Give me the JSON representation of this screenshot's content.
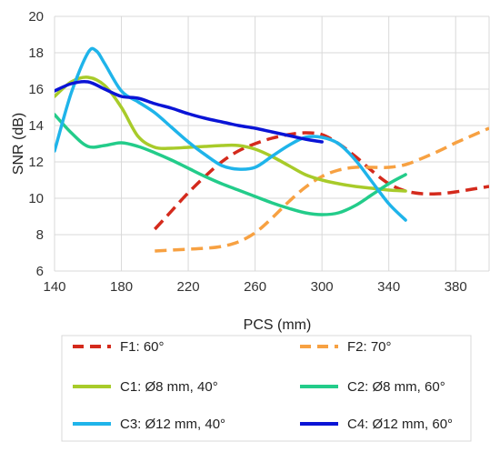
{
  "chart_data": {
    "type": "line",
    "title": "",
    "xlabel": "PCS (mm)",
    "ylabel": "SNR (dB)",
    "xlim": [
      140,
      400
    ],
    "ylim": [
      6,
      20
    ],
    "xticks": [
      140,
      180,
      220,
      260,
      300,
      340,
      380
    ],
    "yticks": [
      6,
      8,
      10,
      12,
      14,
      16,
      18,
      20
    ],
    "grid": true,
    "legend_position": "bottom",
    "series": [
      {
        "name": "F1: 60°",
        "color": "#d42a1c",
        "dashed": true,
        "x": [
          200,
          210,
          220,
          230,
          240,
          250,
          260,
          270,
          280,
          290,
          300,
          310,
          320,
          330,
          340,
          350,
          360,
          370,
          380,
          390,
          400
        ],
        "y": [
          8.3,
          9.3,
          10.3,
          11.2,
          12.0,
          12.6,
          13.0,
          13.3,
          13.5,
          13.6,
          13.5,
          13.0,
          12.3,
          11.5,
          10.8,
          10.4,
          10.25,
          10.25,
          10.35,
          10.5,
          10.65
        ]
      },
      {
        "name": "F2: 70°",
        "color": "#f7a142",
        "dashed": true,
        "x": [
          200,
          210,
          220,
          230,
          240,
          250,
          260,
          270,
          280,
          290,
          300,
          310,
          320,
          330,
          340,
          350,
          360,
          370,
          380,
          390,
          400
        ],
        "y": [
          7.1,
          7.15,
          7.2,
          7.25,
          7.35,
          7.6,
          8.1,
          8.9,
          9.8,
          10.6,
          11.2,
          11.55,
          11.7,
          11.7,
          11.7,
          11.85,
          12.2,
          12.6,
          13.05,
          13.45,
          13.85
        ]
      },
      {
        "name": "C1: Ø8 mm, 40°",
        "color": "#a8cb2a",
        "dashed": false,
        "x": [
          140,
          150,
          160,
          170,
          180,
          190,
          200,
          210,
          220,
          230,
          240,
          250,
          260,
          270,
          280,
          290,
          300,
          310,
          320,
          330,
          340,
          350
        ],
        "y": [
          15.6,
          16.4,
          16.65,
          16.2,
          15.0,
          13.4,
          12.8,
          12.75,
          12.8,
          12.85,
          12.9,
          12.9,
          12.7,
          12.3,
          11.8,
          11.3,
          11.0,
          10.8,
          10.65,
          10.55,
          10.45,
          10.4
        ]
      },
      {
        "name": "C2: Ø8 mm, 60°",
        "color": "#23cc8a",
        "dashed": false,
        "x": [
          140,
          150,
          160,
          170,
          180,
          190,
          200,
          210,
          220,
          230,
          240,
          250,
          260,
          270,
          280,
          290,
          300,
          310,
          320,
          330,
          340,
          350
        ],
        "y": [
          14.6,
          13.6,
          12.85,
          12.9,
          13.05,
          12.85,
          12.5,
          12.1,
          11.65,
          11.2,
          10.8,
          10.45,
          10.1,
          9.75,
          9.45,
          9.2,
          9.1,
          9.2,
          9.6,
          10.2,
          10.8,
          11.3
        ]
      },
      {
        "name": "C3: Ø12 mm, 40°",
        "color": "#1fb4ea",
        "dashed": false,
        "x": [
          140,
          150,
          160,
          165,
          170,
          180,
          190,
          200,
          210,
          220,
          230,
          240,
          250,
          260,
          270,
          280,
          290,
          300,
          310,
          320,
          330,
          340,
          350
        ],
        "y": [
          12.6,
          15.8,
          18.0,
          18.1,
          17.4,
          15.9,
          15.3,
          14.7,
          13.9,
          13.1,
          12.4,
          11.8,
          11.6,
          11.7,
          12.3,
          12.9,
          13.35,
          13.35,
          13.0,
          12.1,
          10.9,
          9.7,
          8.8
        ]
      },
      {
        "name": "C4: Ø12 mm, 60°",
        "color": "#0a14d6",
        "dashed": false,
        "x": [
          140,
          150,
          160,
          170,
          180,
          190,
          200,
          210,
          220,
          230,
          240,
          250,
          260,
          270,
          280,
          290,
          300
        ],
        "y": [
          15.9,
          16.3,
          16.4,
          16.0,
          15.6,
          15.5,
          15.2,
          14.95,
          14.65,
          14.4,
          14.2,
          14.0,
          13.85,
          13.65,
          13.45,
          13.25,
          13.1
        ]
      }
    ]
  }
}
